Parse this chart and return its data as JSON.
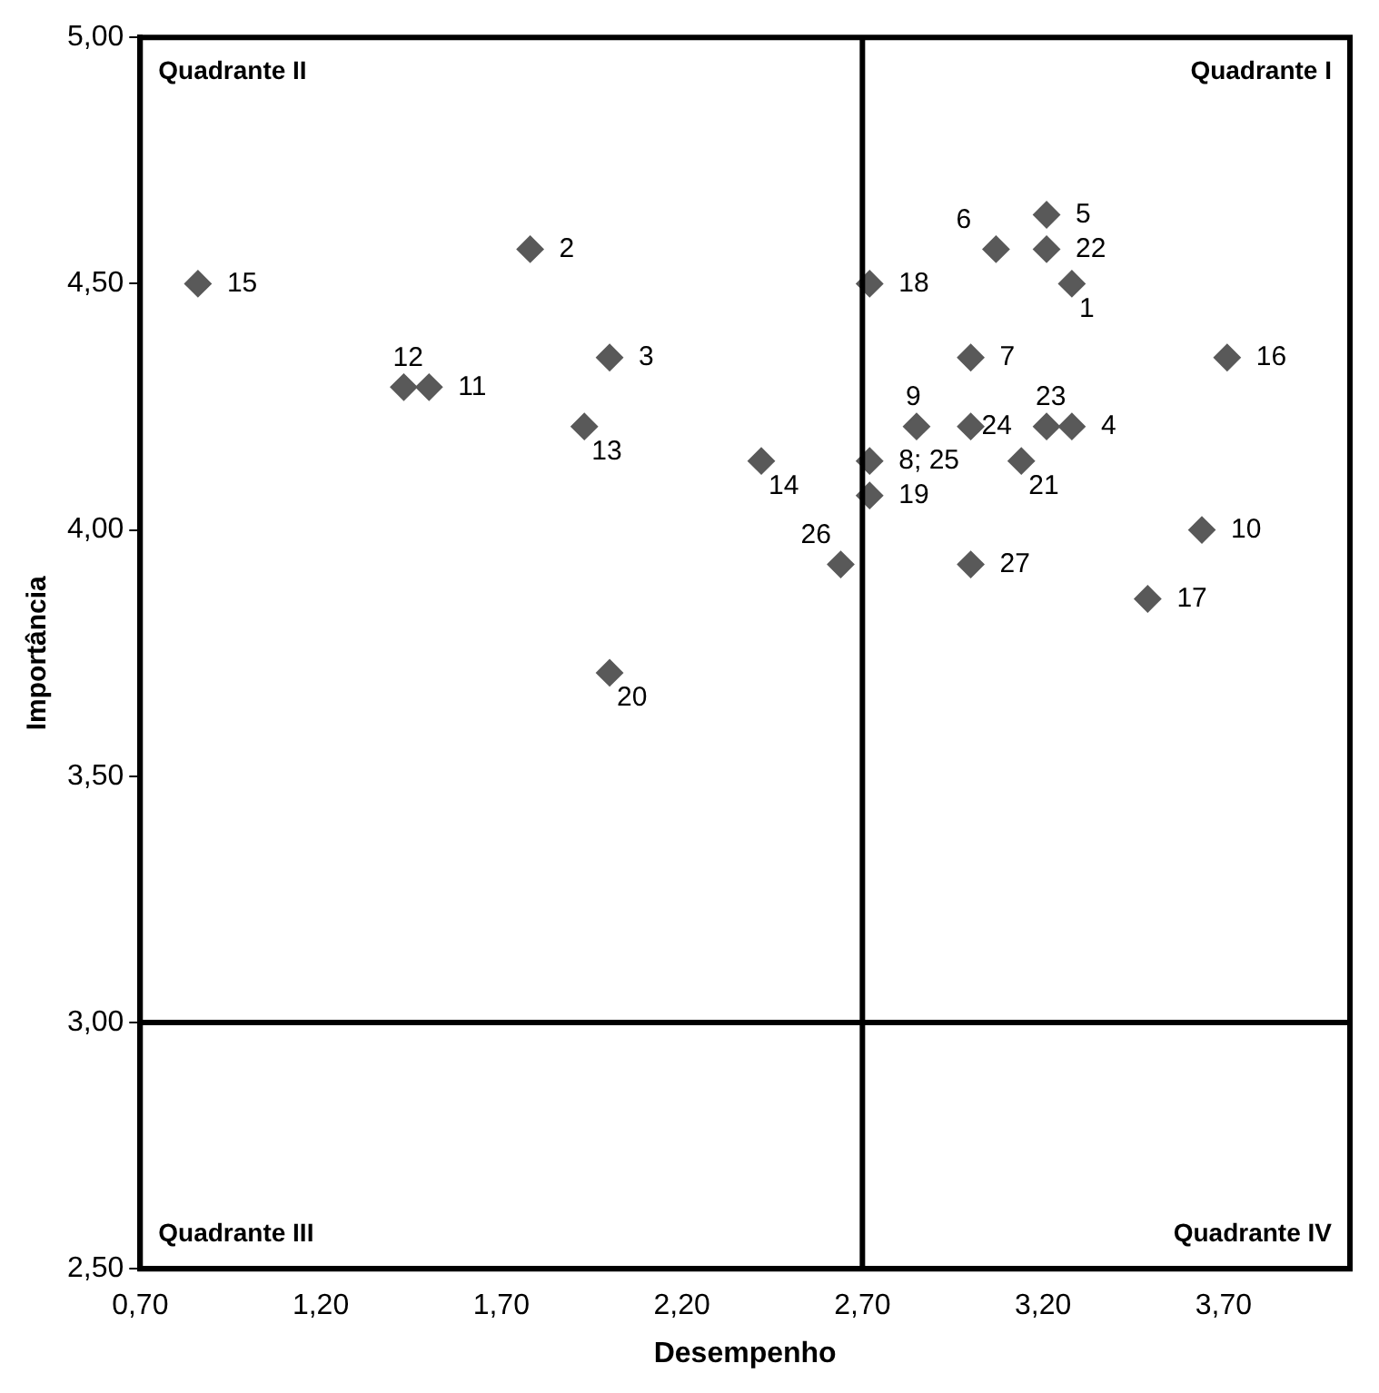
{
  "chart_data": {
    "type": "scatter",
    "xlabel": "Desempenho",
    "ylabel": "Importância",
    "marker": "diamond",
    "grid": false,
    "legend": false,
    "xlim": [
      0.7,
      4.05
    ],
    "xticks": [
      {
        "value": 0.7,
        "label": "0,70"
      },
      {
        "value": 1.2,
        "label": "1,20"
      },
      {
        "value": 1.7,
        "label": "1,70"
      },
      {
        "value": 2.2,
        "label": "2,20"
      },
      {
        "value": 2.7,
        "label": "2,70"
      },
      {
        "value": 3.2,
        "label": "3,20"
      },
      {
        "value": 3.7,
        "label": "3,70"
      }
    ],
    "ylim": [
      2.5,
      5.0
    ],
    "yticks": [
      {
        "value": 2.5,
        "label": "2,50"
      },
      {
        "value": 3.0,
        "label": "3,00"
      },
      {
        "value": 3.5,
        "label": "3,50"
      },
      {
        "value": 4.0,
        "label": "4,00"
      },
      {
        "value": 4.5,
        "label": "4,50"
      },
      {
        "value": 5.0,
        "label": "5,00"
      }
    ],
    "ref_lines": [
      {
        "axis": "x",
        "value": 2.7,
        "color": "#000000"
      },
      {
        "axis": "y",
        "value": 3.0,
        "color": "#000000"
      }
    ],
    "annotations": [
      "Quadrante II",
      "Quadrante I",
      "Quadrante III",
      "Quadrante IV",
      {
        "text": "1",
        "x": 3.28,
        "y": 4.5
      },
      {
        "text": "2",
        "x": 1.78,
        "y": 4.57
      },
      {
        "text": "3",
        "x": 2.0,
        "y": 4.35
      },
      {
        "text": "4",
        "x": 3.28,
        "y": 4.21
      },
      {
        "text": "5",
        "x": 3.21,
        "y": 4.64
      },
      {
        "text": "6",
        "x": 3.07,
        "y": 4.57
      },
      {
        "text": "7",
        "x": 3.0,
        "y": 4.35
      },
      {
        "text": "8; 25",
        "x": 2.72,
        "y": 4.14
      },
      {
        "text": "9",
        "x": 2.85,
        "y": 4.21
      },
      {
        "text": "10",
        "x": 3.64,
        "y": 4.0
      },
      {
        "text": "11",
        "x": 1.5,
        "y": 4.29
      },
      {
        "text": "12",
        "x": 1.43,
        "y": 4.29
      },
      {
        "text": "13",
        "x": 1.93,
        "y": 4.21
      },
      {
        "text": "14",
        "x": 2.42,
        "y": 4.14
      },
      {
        "text": "15",
        "x": 0.86,
        "y": 4.5
      },
      {
        "text": "16",
        "x": 3.71,
        "y": 4.35
      },
      {
        "text": "17",
        "x": 3.49,
        "y": 3.86
      },
      {
        "text": "18",
        "x": 2.72,
        "y": 4.5
      },
      {
        "text": "19",
        "x": 2.72,
        "y": 4.07
      },
      {
        "text": "20",
        "x": 2.0,
        "y": 3.71
      },
      {
        "text": "21",
        "x": 3.14,
        "y": 4.14
      },
      {
        "text": "22",
        "x": 3.21,
        "y": 4.57
      },
      {
        "text": "23",
        "x": 3.21,
        "y": 4.21
      },
      {
        "text": "24",
        "x": 3.0,
        "y": 4.21
      },
      {
        "text": "26",
        "x": 2.64,
        "y": 3.93
      },
      {
        "text": "27",
        "x": 3.0,
        "y": 3.93
      }
    ],
    "series": [
      {
        "color": "#595959",
        "x": [
          3.28,
          1.78,
          2.0,
          3.28,
          3.21,
          3.07,
          3.0,
          2.72,
          2.85,
          3.64,
          1.5,
          1.43,
          1.93,
          2.42,
          0.86,
          3.71,
          3.49,
          2.72,
          2.72,
          2.0,
          3.14,
          3.21,
          3.21,
          3.0,
          2.64,
          3.0
        ],
        "values": [
          4.5,
          4.57,
          4.35,
          4.21,
          4.64,
          4.57,
          4.35,
          4.14,
          4.21,
          4.0,
          4.29,
          4.29,
          4.21,
          4.14,
          4.5,
          4.35,
          3.86,
          4.5,
          4.07,
          3.71,
          4.14,
          4.57,
          4.21,
          4.21,
          3.93,
          3.93
        ]
      }
    ]
  }
}
